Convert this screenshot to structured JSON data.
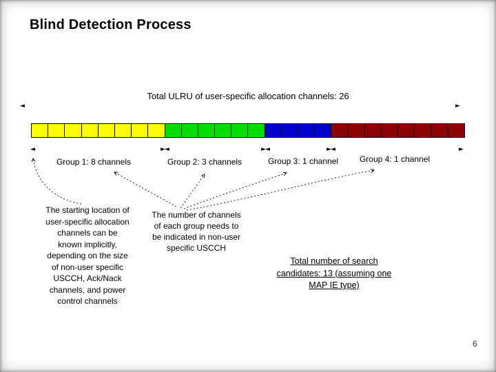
{
  "slide": {
    "title": "Blind Detection Process",
    "page_number": "6"
  },
  "icons": {
    "arrow_left": "◄",
    "arrow_right": "►",
    "arrow_pair": "►◄"
  },
  "diagram": {
    "total_label": "Total ULRU of user-specific allocation channels: 26",
    "total_ulru": 26,
    "bar": {
      "segments": [
        {
          "name": "group-1",
          "color": "#FFFF00",
          "ulru": 8,
          "channels": 8
        },
        {
          "name": "group-2",
          "color": "#00DD00",
          "ulru": 6,
          "channels": 3
        },
        {
          "name": "group-3",
          "color": "#0000CC",
          "ulru": 4,
          "channels": 1
        },
        {
          "name": "group-4",
          "color": "#8B0000",
          "ulru": 8,
          "channels": 1
        }
      ]
    },
    "group_labels": [
      "Group 1: 8 channels",
      "Group 2: 3 channels",
      "Group 3: 1 channel",
      "Group 4: 1 channel"
    ],
    "notes": {
      "left": "The starting location of\nuser-specific allocation\nchannels can be\nknown implicitly,\ndepending on the size\nof non-user specific\nUSCCH, Ack/Nack\nchannels, and power\ncontrol channels",
      "middle": "The number of channels\nof each group needs to\nbe indicated in non-user\nspecific USCCH",
      "right": "Total number of search\ncandidates: 13 (assuming one\nMAP IE type)"
    }
  }
}
